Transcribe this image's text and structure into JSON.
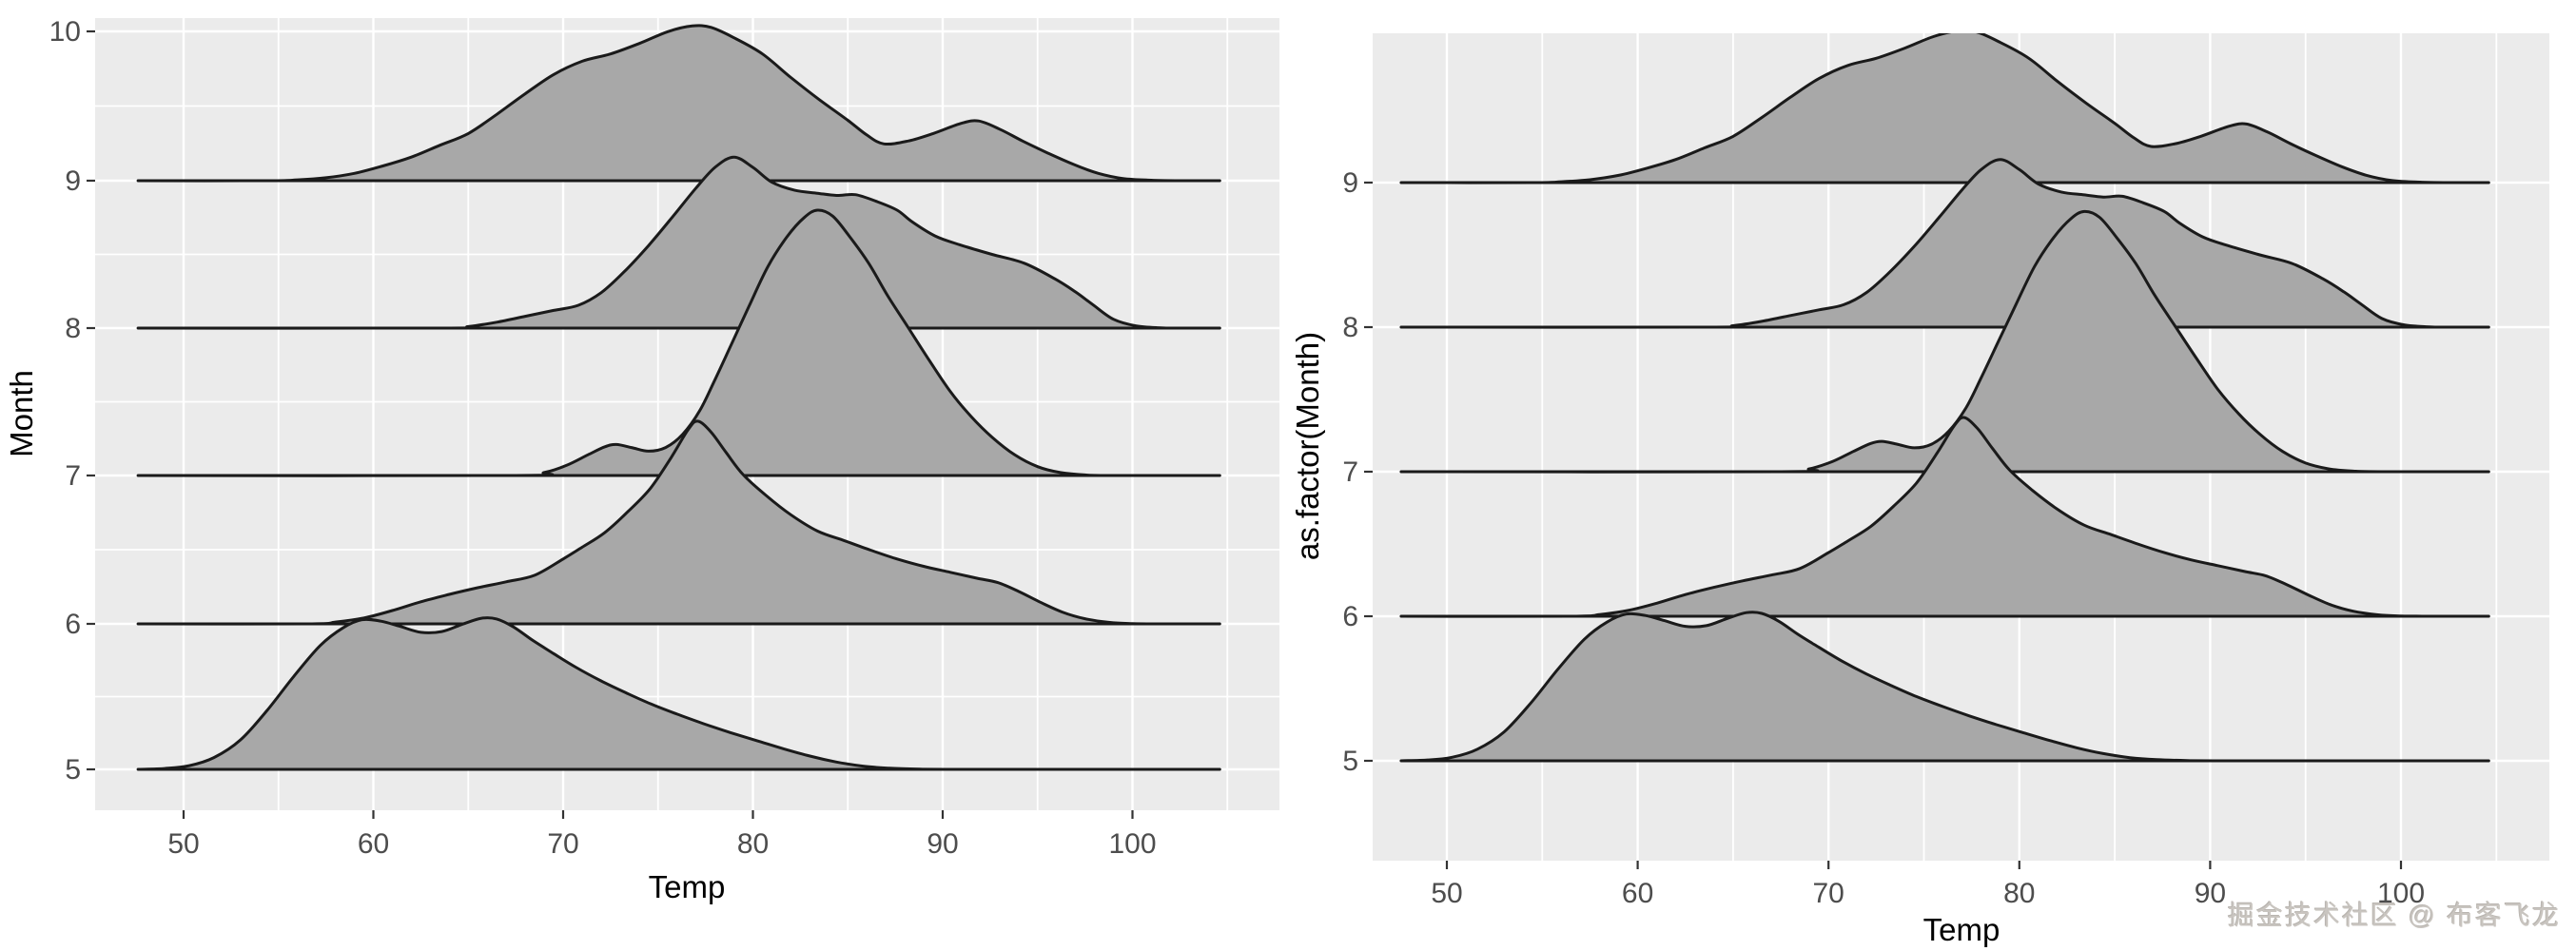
{
  "watermark": "掘金技术社区 @ 布客飞龙",
  "colors": {
    "panel_background": "#ebebeb",
    "grid_line": "#ffffff",
    "ridge_fill": "#a8a8a8",
    "ridge_stroke": "#1a1a1a",
    "tick_text": "#4d4d4d",
    "axis_title_text": "#000000",
    "tick_mark": "#333333"
  },
  "chart_data": [
    {
      "type": "area",
      "subtype": "ridgeline-density",
      "title": "",
      "xlabel": "Temp",
      "ylabel": "Month",
      "x_ticks": [
        50,
        60,
        70,
        80,
        90,
        100
      ],
      "y_ticks": [
        10,
        9,
        8,
        7,
        6,
        5
      ],
      "x_panel_range": [
        45.3,
        107.7
      ],
      "grid": "white major and minor gridlines on grey panel, minor y gridlines at half-months",
      "legend": "none",
      "series_key": "ridges"
    },
    {
      "type": "area",
      "subtype": "ridgeline-density",
      "title": "",
      "xlabel": "Temp",
      "ylabel": "as.factor(Month)",
      "x_ticks": [
        50,
        60,
        70,
        80,
        90,
        100
      ],
      "y_ticks": [
        9,
        8,
        7,
        6,
        5
      ],
      "x_panel_range": [
        46.1,
        107.8
      ],
      "grid": "white gridlines on grey panel, no minor y gridlines (discrete axis)",
      "legend": "none",
      "series_key": "ridges"
    }
  ],
  "ridges": {
    "height_units": "fraction of one month row spacing; x = Temp (deg F)",
    "baseline_span": [
      47.6,
      104.6
    ],
    "series": [
      {
        "name": "Month 9",
        "baseline": 9,
        "points": [
          [
            47.6,
            0
          ],
          [
            54.5,
            0
          ],
          [
            56,
            0.006
          ],
          [
            57.5,
            0.02
          ],
          [
            59,
            0.05
          ],
          [
            60.5,
            0.1
          ],
          [
            62,
            0.16
          ],
          [
            63.5,
            0.24
          ],
          [
            65,
            0.32
          ],
          [
            66.5,
            0.45
          ],
          [
            68,
            0.59
          ],
          [
            69.5,
            0.72
          ],
          [
            71,
            0.81
          ],
          [
            72.5,
            0.86
          ],
          [
            74,
            0.93
          ],
          [
            75.5,
            1.01
          ],
          [
            76.8,
            1.05
          ],
          [
            77.8,
            1.04
          ],
          [
            79,
            0.97
          ],
          [
            80.5,
            0.86
          ],
          [
            82,
            0.7
          ],
          [
            83.5,
            0.55
          ],
          [
            85,
            0.41
          ],
          [
            86,
            0.31
          ],
          [
            86.9,
            0.25
          ],
          [
            88.2,
            0.27
          ],
          [
            89.5,
            0.32
          ],
          [
            91,
            0.39
          ],
          [
            91.9,
            0.405
          ],
          [
            93,
            0.35
          ],
          [
            94.2,
            0.27
          ],
          [
            95.5,
            0.19
          ],
          [
            96.9,
            0.11
          ],
          [
            98.2,
            0.05
          ],
          [
            99.5,
            0.015
          ],
          [
            101,
            0.003
          ],
          [
            102.5,
            0
          ],
          [
            104.6,
            0
          ]
        ]
      },
      {
        "name": "Month 8",
        "baseline": 8,
        "points": [
          [
            47.6,
            0
          ],
          [
            63.5,
            0
          ],
          [
            65,
            0.01
          ],
          [
            66.5,
            0.04
          ],
          [
            68,
            0.08
          ],
          [
            69.5,
            0.12
          ],
          [
            70.8,
            0.155
          ],
          [
            72,
            0.24
          ],
          [
            73.2,
            0.38
          ],
          [
            74.5,
            0.56
          ],
          [
            75.8,
            0.76
          ],
          [
            77,
            0.95
          ],
          [
            78,
            1.09
          ],
          [
            79,
            1.16
          ],
          [
            80,
            1.09
          ],
          [
            81,
            0.99
          ],
          [
            82.2,
            0.935
          ],
          [
            83.4,
            0.915
          ],
          [
            84.4,
            0.9
          ],
          [
            85.4,
            0.905
          ],
          [
            86.5,
            0.86
          ],
          [
            87.6,
            0.8
          ],
          [
            88.4,
            0.72
          ],
          [
            89.6,
            0.625
          ],
          [
            90.9,
            0.565
          ],
          [
            92.6,
            0.5
          ],
          [
            94.3,
            0.44
          ],
          [
            95.9,
            0.335
          ],
          [
            97,
            0.245
          ],
          [
            97.9,
            0.16
          ],
          [
            99,
            0.06
          ],
          [
            100.2,
            0.015
          ],
          [
            101.5,
            0.002
          ],
          [
            102.5,
            0
          ],
          [
            104.6,
            0
          ]
        ]
      },
      {
        "name": "Month 7",
        "baseline": 7,
        "points": [
          [
            47.6,
            0
          ],
          [
            67.5,
            0
          ],
          [
            69,
            0.02
          ],
          [
            70.2,
            0.07
          ],
          [
            71.3,
            0.14
          ],
          [
            72.2,
            0.195
          ],
          [
            72.8,
            0.21
          ],
          [
            73.6,
            0.19
          ],
          [
            74.5,
            0.165
          ],
          [
            75.4,
            0.19
          ],
          [
            76.3,
            0.28
          ],
          [
            77.2,
            0.44
          ],
          [
            78,
            0.65
          ],
          [
            78.9,
            0.9
          ],
          [
            79.8,
            1.15
          ],
          [
            80.8,
            1.42
          ],
          [
            81.8,
            1.62
          ],
          [
            82.7,
            1.75
          ],
          [
            83.4,
            1.8
          ],
          [
            84.2,
            1.76
          ],
          [
            85.1,
            1.62
          ],
          [
            86.1,
            1.44
          ],
          [
            87.1,
            1.22
          ],
          [
            88.2,
            1.0
          ],
          [
            89.3,
            0.78
          ],
          [
            90.4,
            0.57
          ],
          [
            91.5,
            0.4
          ],
          [
            92.6,
            0.26
          ],
          [
            93.8,
            0.14
          ],
          [
            95,
            0.06
          ],
          [
            96.2,
            0.02
          ],
          [
            97.5,
            0.004
          ],
          [
            99,
            0
          ],
          [
            104.6,
            0
          ]
        ]
      },
      {
        "name": "Month 6",
        "baseline": 6,
        "points": [
          [
            47.6,
            0
          ],
          [
            56.5,
            0
          ],
          [
            58,
            0.012
          ],
          [
            59.5,
            0.04
          ],
          [
            61,
            0.09
          ],
          [
            62.5,
            0.15
          ],
          [
            64,
            0.2
          ],
          [
            65.5,
            0.245
          ],
          [
            67,
            0.285
          ],
          [
            68.5,
            0.33
          ],
          [
            70,
            0.44
          ],
          [
            71,
            0.52
          ],
          [
            72.2,
            0.62
          ],
          [
            73.4,
            0.76
          ],
          [
            74.6,
            0.92
          ],
          [
            75.7,
            1.13
          ],
          [
            76.6,
            1.32
          ],
          [
            77.1,
            1.375
          ],
          [
            77.8,
            1.3
          ],
          [
            78.6,
            1.16
          ],
          [
            79.5,
            1.01
          ],
          [
            80.7,
            0.87
          ],
          [
            82,
            0.74
          ],
          [
            83.4,
            0.63
          ],
          [
            84.8,
            0.565
          ],
          [
            86.2,
            0.5
          ],
          [
            87.6,
            0.44
          ],
          [
            89,
            0.39
          ],
          [
            90.4,
            0.35
          ],
          [
            91.8,
            0.31
          ],
          [
            92.9,
            0.28
          ],
          [
            94,
            0.22
          ],
          [
            95.1,
            0.15
          ],
          [
            96.3,
            0.08
          ],
          [
            97.5,
            0.035
          ],
          [
            98.8,
            0.01
          ],
          [
            100,
            0.002
          ],
          [
            101.5,
            0
          ],
          [
            104.6,
            0
          ]
        ]
      },
      {
        "name": "Month 5",
        "baseline": 5,
        "points": [
          [
            47.6,
            0
          ],
          [
            49,
            0.006
          ],
          [
            50.3,
            0.025
          ],
          [
            51.6,
            0.08
          ],
          [
            53,
            0.2
          ],
          [
            54.4,
            0.4
          ],
          [
            55.8,
            0.63
          ],
          [
            57.2,
            0.84
          ],
          [
            58.4,
            0.96
          ],
          [
            59.4,
            1.015
          ],
          [
            60.4,
            1.005
          ],
          [
            61.4,
            0.97
          ],
          [
            62.5,
            0.93
          ],
          [
            63.6,
            0.935
          ],
          [
            64.7,
            0.985
          ],
          [
            65.7,
            1.025
          ],
          [
            66.5,
            1.02
          ],
          [
            67.4,
            0.965
          ],
          [
            68.4,
            0.875
          ],
          [
            69.5,
            0.785
          ],
          [
            70.7,
            0.69
          ],
          [
            72,
            0.6
          ],
          [
            73.3,
            0.52
          ],
          [
            74.6,
            0.445
          ],
          [
            76,
            0.375
          ],
          [
            77.4,
            0.31
          ],
          [
            78.8,
            0.25
          ],
          [
            80.2,
            0.195
          ],
          [
            81.6,
            0.14
          ],
          [
            83,
            0.09
          ],
          [
            84.4,
            0.05
          ],
          [
            85.8,
            0.022
          ],
          [
            87.2,
            0.008
          ],
          [
            88.8,
            0.002
          ],
          [
            90.5,
            0
          ],
          [
            104.6,
            0
          ]
        ]
      }
    ]
  }
}
